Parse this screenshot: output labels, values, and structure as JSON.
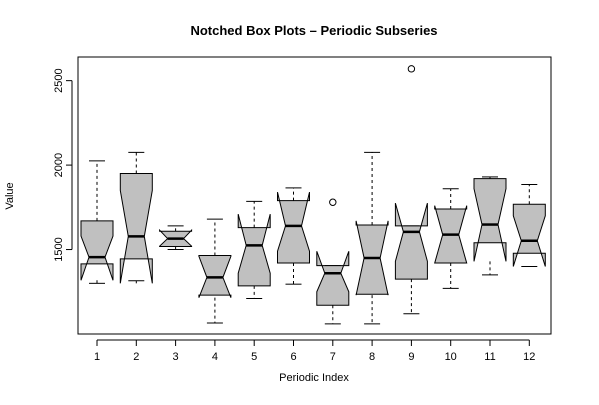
{
  "chart_data": {
    "type": "boxplot",
    "notched": true,
    "title": "Notched Box Plots – Periodic Subseries",
    "xlabel": "Periodic Index",
    "ylabel": "Value",
    "ylim": [
      1000,
      2640
    ],
    "y_ticks": [
      1500,
      2000,
      2500
    ],
    "box_fill": "#c0c0c0",
    "grid": false,
    "categories": [
      "1",
      "2",
      "3",
      "4",
      "5",
      "6",
      "7",
      "8",
      "9",
      "10",
      "11",
      "12"
    ],
    "boxes": [
      {
        "min": 1300,
        "q1": 1415,
        "median": 1455,
        "q3": 1670,
        "max": 2025,
        "notch_lo": 1318,
        "notch_hi": 1580,
        "outliers": []
      },
      {
        "min": 1315,
        "q1": 1445,
        "median": 1578,
        "q3": 1950,
        "max": 2075,
        "notch_lo": 1300,
        "notch_hi": 1850,
        "outliers": []
      },
      {
        "min": 1500,
        "q1": 1518,
        "median": 1565,
        "q3": 1608,
        "max": 1640,
        "notch_lo": 1520,
        "notch_hi": 1615,
        "outliers": []
      },
      {
        "min": 1065,
        "q1": 1230,
        "median": 1335,
        "q3": 1465,
        "max": 1680,
        "notch_lo": 1215,
        "notch_hi": 1460,
        "outliers": []
      },
      {
        "min": 1210,
        "q1": 1285,
        "median": 1525,
        "q3": 1630,
        "max": 1785,
        "notch_lo": 1360,
        "notch_hi": 1710,
        "outliers": []
      },
      {
        "min": 1295,
        "q1": 1420,
        "median": 1640,
        "q3": 1790,
        "max": 1865,
        "notch_lo": 1490,
        "notch_hi": 1840,
        "outliers": []
      },
      {
        "min": 1060,
        "q1": 1170,
        "median": 1360,
        "q3": 1405,
        "max": 1405,
        "notch_lo": 1250,
        "notch_hi": 1490,
        "outliers": [
          1780
        ]
      },
      {
        "min": 1060,
        "q1": 1235,
        "median": 1450,
        "q3": 1645,
        "max": 2075,
        "notch_lo": 1230,
        "notch_hi": 1670,
        "outliers": []
      },
      {
        "min": 1120,
        "q1": 1325,
        "median": 1605,
        "q3": 1640,
        "max": 1640,
        "notch_lo": 1430,
        "notch_hi": 1775,
        "outliers": [
          2570
        ]
      },
      {
        "min": 1270,
        "q1": 1420,
        "median": 1588,
        "q3": 1740,
        "max": 1860,
        "notch_lo": 1420,
        "notch_hi": 1760,
        "outliers": []
      },
      {
        "min": 1350,
        "q1": 1540,
        "median": 1648,
        "q3": 1920,
        "max": 1930,
        "notch_lo": 1430,
        "notch_hi": 1860,
        "outliers": []
      },
      {
        "min": 1400,
        "q1": 1478,
        "median": 1552,
        "q3": 1768,
        "max": 1885,
        "notch_lo": 1400,
        "notch_hi": 1700,
        "outliers": []
      }
    ]
  }
}
